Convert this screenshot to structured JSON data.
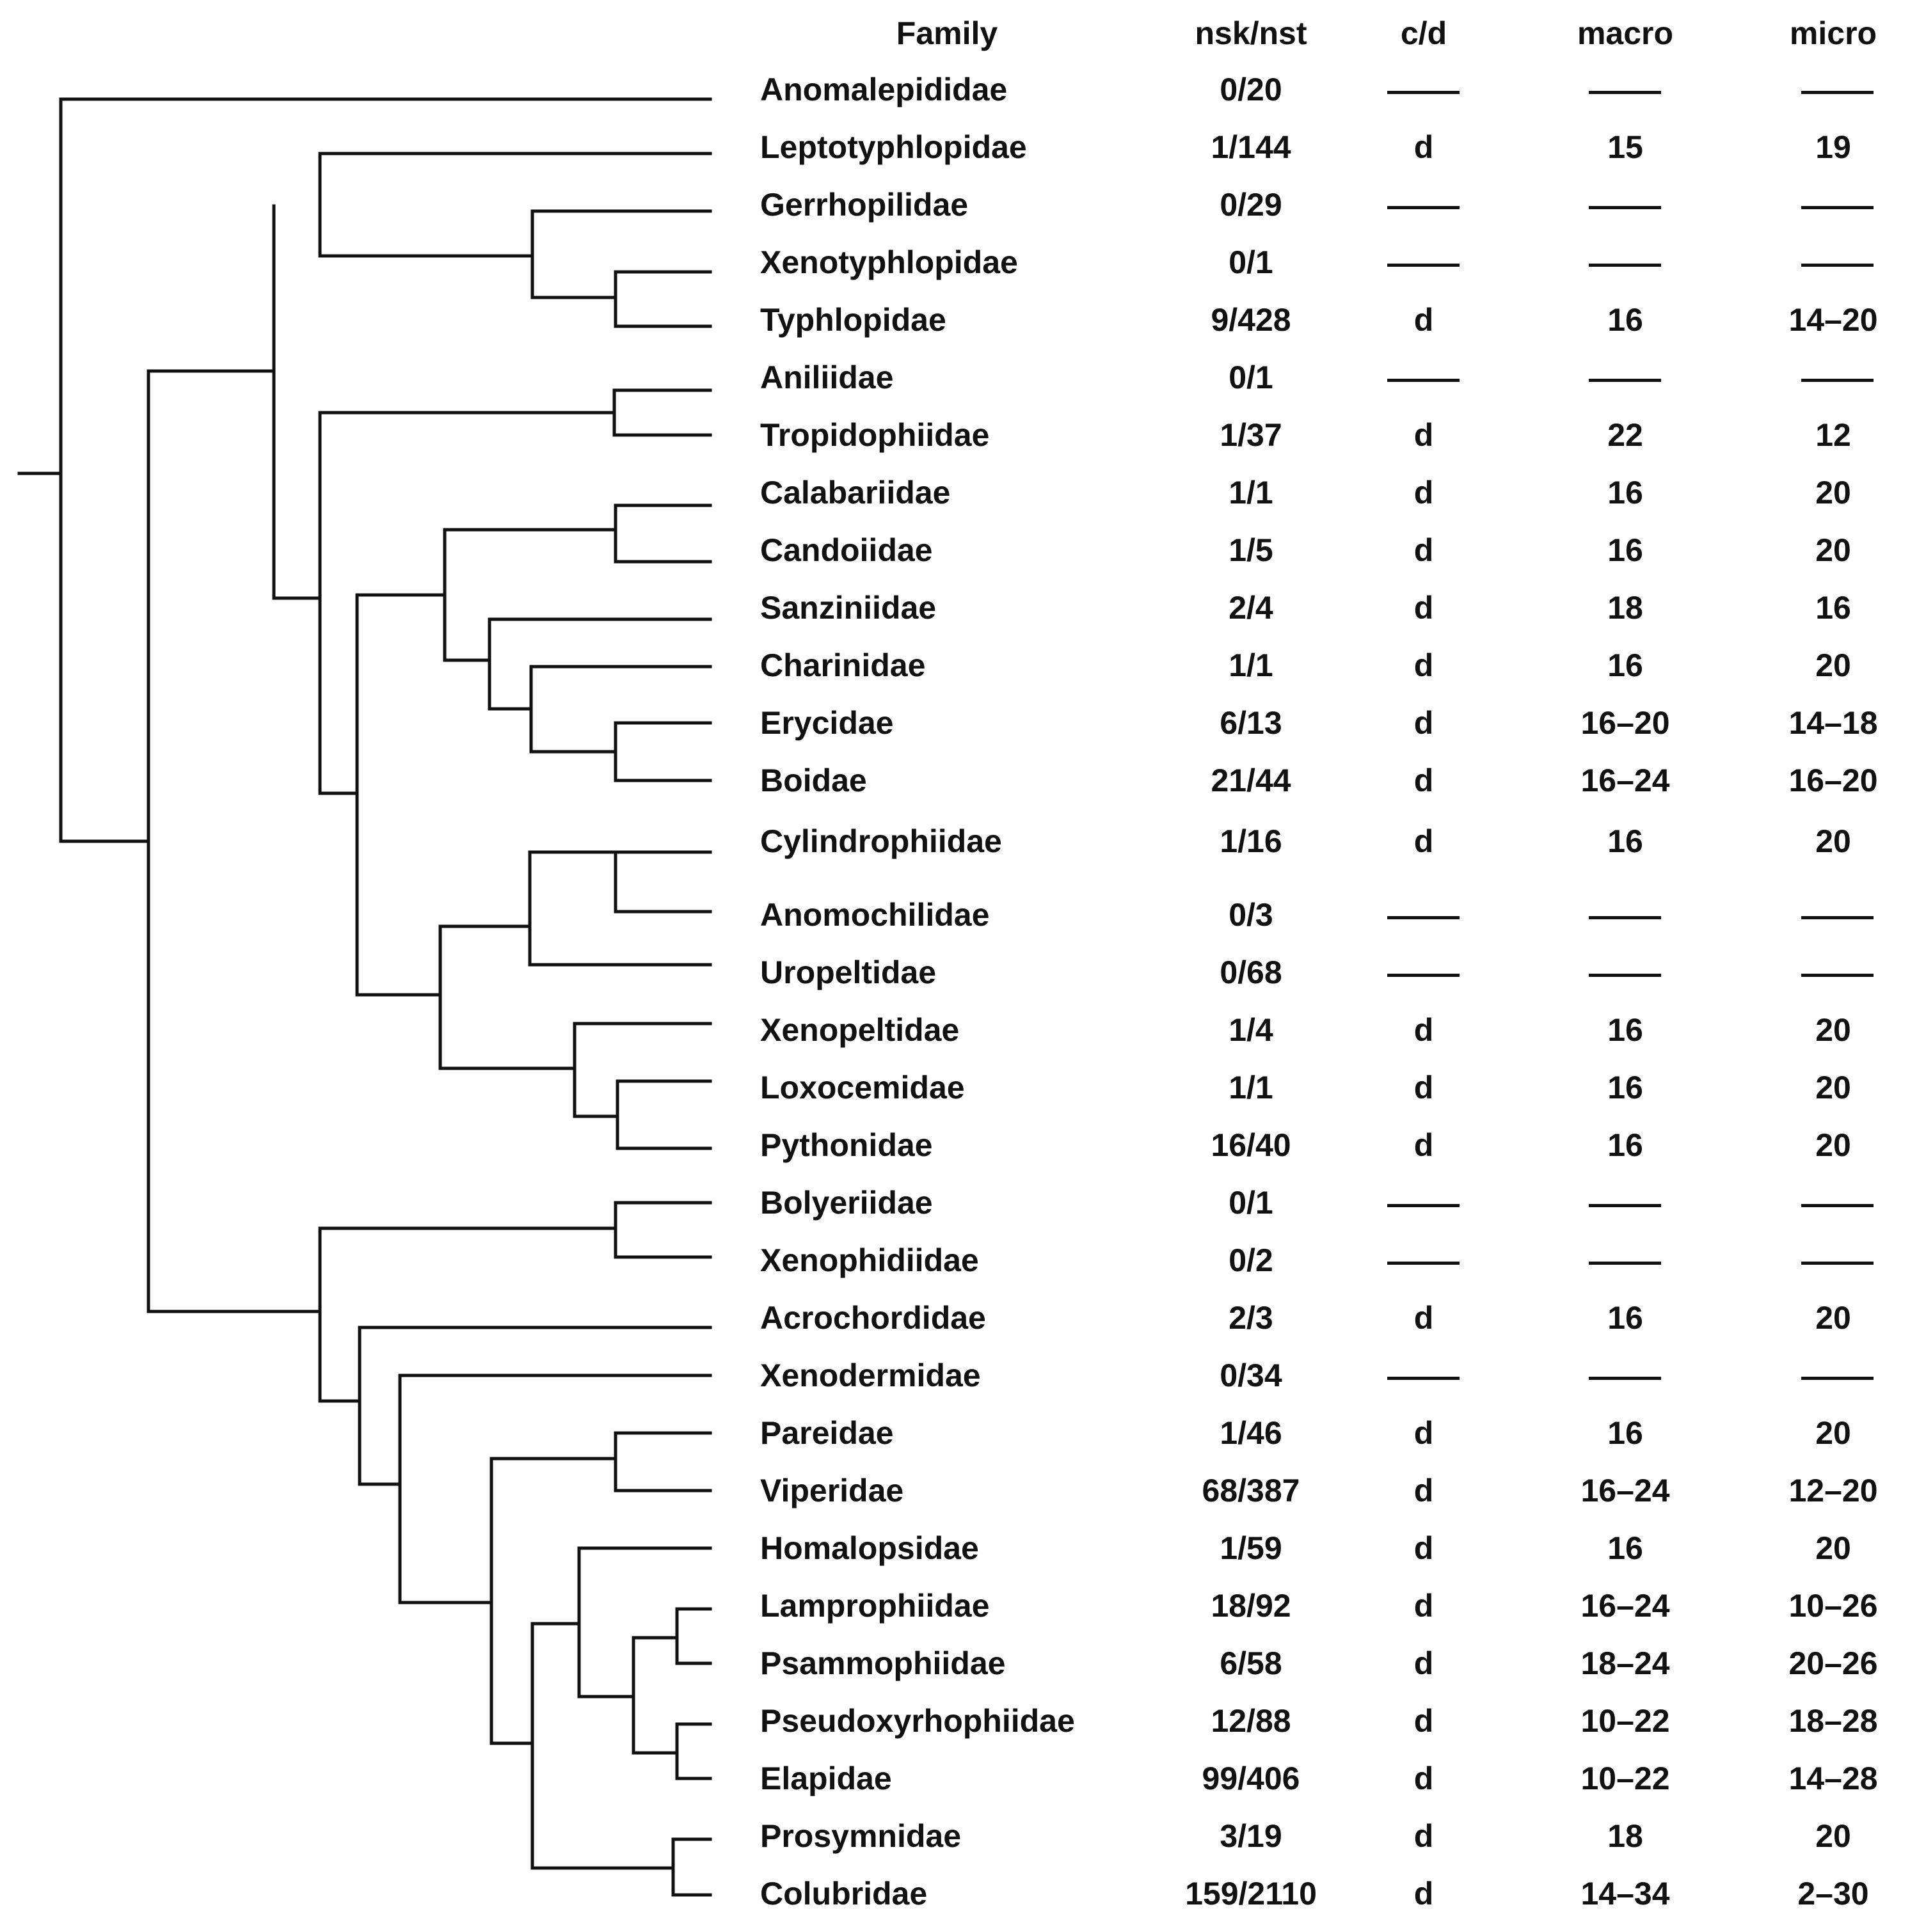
{
  "table": {
    "headers": {
      "family": "Family",
      "nsk_nst": "nsk/nst",
      "cd": "c/d",
      "macro": "macro",
      "micro": "micro"
    },
    "rows": [
      {
        "family": "Anomalepididae",
        "nsk_nst": "0/20",
        "cd": null,
        "macro": null,
        "micro": null
      },
      {
        "family": "Leptotyphlopidae",
        "nsk_nst": "1/144",
        "cd": "d",
        "macro": "15",
        "micro": "19"
      },
      {
        "family": "Gerrhopilidae",
        "nsk_nst": "0/29",
        "cd": null,
        "macro": null,
        "micro": null
      },
      {
        "family": "Xenotyphlopidae",
        "nsk_nst": "0/1",
        "cd": null,
        "macro": null,
        "micro": null
      },
      {
        "family": "Typhlopidae",
        "nsk_nst": "9/428",
        "cd": "d",
        "macro": "16",
        "micro": "14–20"
      },
      {
        "family": "Aniliidae",
        "nsk_nst": "0/1",
        "cd": null,
        "macro": null,
        "micro": null
      },
      {
        "family": "Tropidophiidae",
        "nsk_nst": "1/37",
        "cd": "d",
        "macro": "22",
        "micro": "12"
      },
      {
        "family": "Calabariidae",
        "nsk_nst": "1/1",
        "cd": "d",
        "macro": "16",
        "micro": "20"
      },
      {
        "family": "Candoiidae",
        "nsk_nst": "1/5",
        "cd": "d",
        "macro": "16",
        "micro": "20"
      },
      {
        "family": "Sanziniidae",
        "nsk_nst": "2/4",
        "cd": "d",
        "macro": "18",
        "micro": "16"
      },
      {
        "family": "Charinidae",
        "nsk_nst": "1/1",
        "cd": "d",
        "macro": "16",
        "micro": "20"
      },
      {
        "family": "Erycidae",
        "nsk_nst": "6/13",
        "cd": "d",
        "macro": "16–20",
        "micro": "14–18"
      },
      {
        "family": "Boidae",
        "nsk_nst": "21/44",
        "cd": "d",
        "macro": "16–24",
        "micro": "16–20"
      },
      {
        "family": "Cylindrophiidae",
        "nsk_nst": "1/16",
        "cd": "d",
        "macro": "16",
        "micro": "20"
      },
      {
        "family": "Anomochilidae",
        "nsk_nst": "0/3",
        "cd": null,
        "macro": null,
        "micro": null
      },
      {
        "family": "Uropeltidae",
        "nsk_nst": "0/68",
        "cd": null,
        "macro": null,
        "micro": null
      },
      {
        "family": "Xenopeltidae",
        "nsk_nst": "1/4",
        "cd": "d",
        "macro": "16",
        "micro": "20"
      },
      {
        "family": "Loxocemidae",
        "nsk_nst": "1/1",
        "cd": "d",
        "macro": "16",
        "micro": "20"
      },
      {
        "family": "Pythonidae",
        "nsk_nst": "16/40",
        "cd": "d",
        "macro": "16",
        "micro": "20"
      },
      {
        "family": "Bolyeriidae",
        "nsk_nst": "0/1",
        "cd": null,
        "macro": null,
        "micro": null
      },
      {
        "family": "Xenophidiidae",
        "nsk_nst": "0/2",
        "cd": null,
        "macro": null,
        "micro": null
      },
      {
        "family": "Acrochordidae",
        "nsk_nst": "2/3",
        "cd": "d",
        "macro": "16",
        "micro": "20"
      },
      {
        "family": "Xenodermidae",
        "nsk_nst": "0/34",
        "cd": null,
        "macro": null,
        "micro": null
      },
      {
        "family": "Pareidae",
        "nsk_nst": "1/46",
        "cd": "d",
        "macro": "16",
        "micro": "20"
      },
      {
        "family": "Viperidae",
        "nsk_nst": "68/387",
        "cd": "d",
        "macro": "16–24",
        "micro": "12–20"
      },
      {
        "family": "Homalopsidae",
        "nsk_nst": "1/59",
        "cd": "d",
        "macro": "16",
        "micro": "20"
      },
      {
        "family": "Lamprophiidae",
        "nsk_nst": "18/92",
        "cd": "d",
        "macro": "16–24",
        "micro": "10–26"
      },
      {
        "family": "Psammophiidae",
        "nsk_nst": "6/58",
        "cd": "d",
        "macro": "18–24",
        "micro": "20–26"
      },
      {
        "family": "Pseudoxyrhophiidae",
        "nsk_nst": "12/88",
        "cd": "d",
        "macro": "10–22",
        "micro": "18–28"
      },
      {
        "family": "Elapidae",
        "nsk_nst": "99/406",
        "cd": "d",
        "macro": "10–22",
        "micro": "14–28"
      },
      {
        "family": "Prosymnidae",
        "nsk_nst": "3/19",
        "cd": "d",
        "macro": "18",
        "micro": "20"
      },
      {
        "family": "Colubridae",
        "nsk_nst": "159/2110",
        "cd": "d",
        "macro": "14–34",
        "micro": "2–30"
      }
    ]
  }
}
